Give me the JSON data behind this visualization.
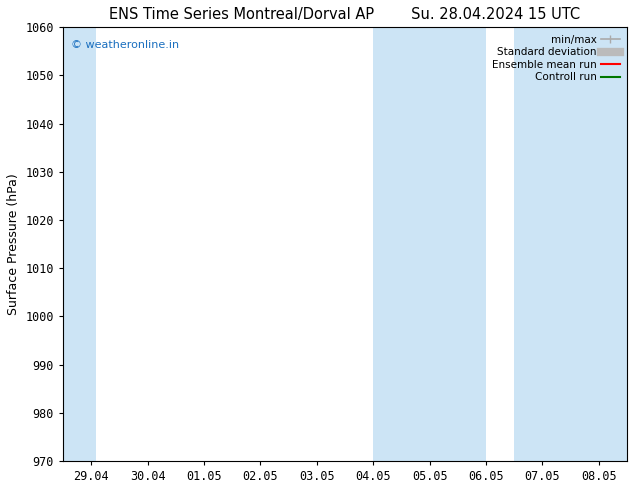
{
  "title_left": "ENS Time Series Montreal/Dorval AP",
  "title_right": "Su. 28.04.2024 15 UTC",
  "ylabel": "Surface Pressure (hPa)",
  "ylim": [
    970,
    1060
  ],
  "yticks": [
    970,
    980,
    990,
    1000,
    1010,
    1020,
    1030,
    1040,
    1050,
    1060
  ],
  "xtick_labels": [
    "29.04",
    "30.04",
    "01.05",
    "02.05",
    "03.05",
    "04.05",
    "05.05",
    "06.05",
    "07.05",
    "08.05"
  ],
  "watermark": "© weatheronline.in",
  "watermark_color": "#1a6fbf",
  "background_color": "#ffffff",
  "plot_bg_color": "#ffffff",
  "shaded_regions": [
    {
      "xstart": -0.5,
      "xend": 0.08,
      "color": "#cce4f5"
    },
    {
      "xstart": 5.0,
      "xend": 7.0,
      "color": "#cce4f5"
    },
    {
      "xstart": 7.5,
      "xend": 9.5,
      "color": "#cce4f5"
    }
  ],
  "legend_entries": [
    {
      "label": "min/max",
      "color": "#aaaaaa",
      "lw": 1.2
    },
    {
      "label": "Standard deviation",
      "color": "#bbbbbb",
      "lw": 6
    },
    {
      "label": "Ensemble mean run",
      "color": "#ff0000",
      "lw": 1.5
    },
    {
      "label": "Controll run",
      "color": "#007700",
      "lw": 1.5
    }
  ],
  "n_xticks": 10,
  "font_family": "DejaVu Sans Mono",
  "title_fontsize": 10.5,
  "axis_fontsize": 9,
  "tick_fontsize": 8.5
}
